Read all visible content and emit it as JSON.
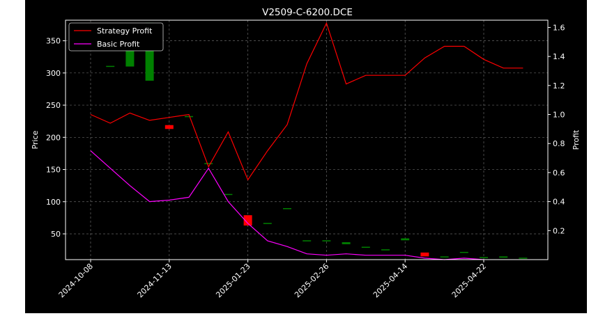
{
  "chart_data": {
    "type": "candlestick-line",
    "title": "V2509-C-6200.DCE",
    "ylabel_left": "Price",
    "ylabel_right": "Profit",
    "ylim_left": [
      10,
      382
    ],
    "ylim_right": [
      0.0,
      1.65
    ],
    "yticks_left": [
      50,
      100,
      150,
      200,
      250,
      300,
      350
    ],
    "yticks_right": [
      "0.2",
      "0.4",
      "0.6",
      "0.8",
      "1.0",
      "1.2",
      "1.4",
      "1.6"
    ],
    "yticks_right_values": [
      0.2,
      0.4,
      0.6,
      0.8,
      1.0,
      1.2,
      1.4,
      1.6
    ],
    "x_tick_labels": [
      "2024-10-08",
      "2024-11-13",
      "2025-01-23",
      "2025-02-26",
      "2025-04-14",
      "2025-04-22"
    ],
    "x_tick_indices": [
      0,
      4,
      8,
      12,
      16,
      20
    ],
    "grid": true,
    "legend": {
      "position": "top-left",
      "entries": [
        {
          "label": "Strategy Profit",
          "color": "#ff0000"
        },
        {
          "label": "Basic Profit",
          "color": "#ff00ff"
        }
      ]
    },
    "colors": {
      "up": "#008000",
      "down": "#ff0000",
      "strategy": "#ff0000",
      "basic": "#ff00ff",
      "background": "#000000",
      "grid": "#808080"
    },
    "candles": [
      {
        "i": 1,
        "open": 311,
        "close": 311
      },
      {
        "i": 2,
        "open": 310,
        "close": 376
      },
      {
        "i": 3,
        "open": 288,
        "close": 378
      },
      {
        "i": 4,
        "open": 219,
        "close": 213
      },
      {
        "i": 5,
        "open": 233,
        "close": 233
      },
      {
        "i": 6,
        "open": 160,
        "close": 160
      },
      {
        "i": 7,
        "open": 112,
        "close": 112
      },
      {
        "i": 8,
        "open": 79,
        "close": 63
      },
      {
        "i": 9,
        "open": 67,
        "close": 67
      },
      {
        "i": 10,
        "open": 90,
        "close": 90
      },
      {
        "i": 11,
        "open": 40,
        "close": 40
      },
      {
        "i": 12,
        "open": 40,
        "close": 40
      },
      {
        "i": 13,
        "open": 34,
        "close": 37
      },
      {
        "i": 14,
        "open": 30,
        "close": 30
      },
      {
        "i": 15,
        "open": 26,
        "close": 26
      },
      {
        "i": 16,
        "open": 40,
        "close": 43
      },
      {
        "i": 17,
        "open": 21,
        "close": 15
      },
      {
        "i": 18,
        "open": 15,
        "close": 15
      },
      {
        "i": 19,
        "open": 22,
        "close": 22
      },
      {
        "i": 20,
        "open": 14,
        "close": 14
      },
      {
        "i": 21,
        "open": 13,
        "close": 15
      },
      {
        "i": 22,
        "open": 13,
        "close": 13
      }
    ],
    "series": [
      {
        "name": "Strategy Profit",
        "axis": "right",
        "x": [
          0,
          1,
          2,
          3,
          4,
          5,
          6,
          7,
          8,
          9,
          10,
          11,
          12,
          13,
          14,
          15,
          16,
          17,
          18,
          19,
          20,
          21,
          22
        ],
        "values": [
          1.0,
          0.94,
          1.01,
          0.96,
          0.98,
          1.0,
          0.64,
          0.88,
          0.55,
          0.75,
          0.93,
          1.35,
          1.63,
          1.21,
          1.27,
          1.27,
          1.27,
          1.39,
          1.47,
          1.47,
          1.38,
          1.32,
          1.32
        ]
      },
      {
        "name": "Basic Profit",
        "axis": "right",
        "x": [
          0,
          1,
          2,
          3,
          4,
          5,
          6,
          7,
          8,
          9,
          10,
          11,
          12,
          13,
          14,
          15,
          16,
          17,
          18,
          19,
          20
        ],
        "values": [
          0.75,
          0.63,
          0.51,
          0.4,
          0.41,
          0.43,
          0.63,
          0.4,
          0.25,
          0.13,
          0.09,
          0.04,
          0.03,
          0.04,
          0.03,
          0.03,
          0.03,
          0.01,
          0.0,
          0.01,
          0.0
        ]
      }
    ]
  }
}
